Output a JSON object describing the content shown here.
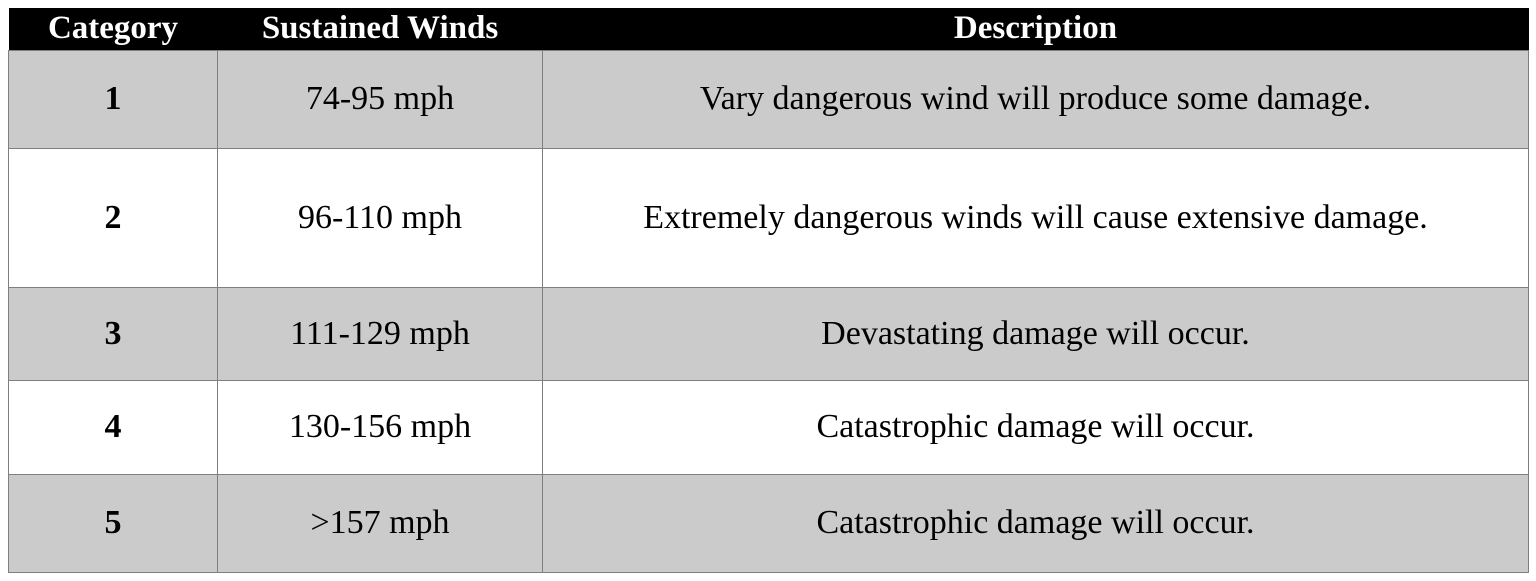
{
  "chart_data": {
    "type": "table",
    "columns": [
      "Category",
      "Sustained Winds",
      "Description"
    ],
    "rows": [
      [
        "1",
        "74-95 mph",
        "Vary dangerous wind will produce some damage."
      ],
      [
        "2",
        "96-110 mph",
        "Extremely dangerous winds will cause extensive damage."
      ],
      [
        "3",
        "111-129 mph",
        "Devastating damage will occur."
      ],
      [
        "4",
        "130-156 mph",
        "Catastrophic damage will occur."
      ],
      [
        "5",
        ">157 mph",
        "Catastrophic damage will occur."
      ]
    ]
  },
  "colors": {
    "header_bg": "#000000",
    "header_text": "#ffffff",
    "row_alt_bg": "#cbcbcb",
    "row_bg": "#ffffff",
    "border": "#7f7f7f",
    "text": "#000000"
  }
}
